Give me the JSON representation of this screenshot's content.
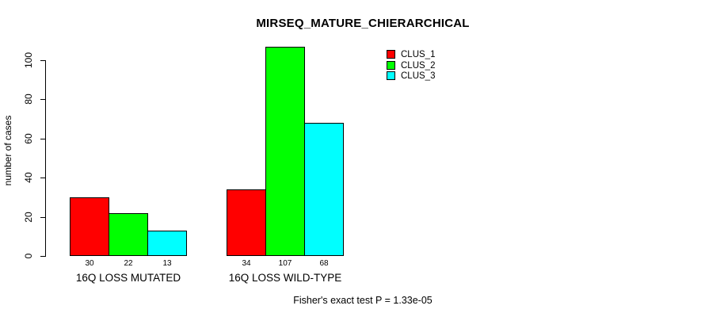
{
  "title": "MIRSEQ_MATURE_CHIERARCHICAL",
  "chart_data": {
    "type": "bar",
    "title": "MIRSEQ_MATURE_CHIERARCHICAL",
    "xlabel": "",
    "ylabel": "number of cases",
    "ylim": [
      0,
      100
    ],
    "yticks": [
      0,
      20,
      40,
      60,
      80,
      100
    ],
    "grid": false,
    "legend_position": "top-right",
    "categories": [
      "16Q LOSS MUTATED",
      "16Q LOSS WILD-TYPE"
    ],
    "series": [
      {
        "name": "CLUS_1",
        "color": "#ff0000",
        "values": [
          30,
          34
        ]
      },
      {
        "name": "CLUS_2",
        "color": "#00ff00",
        "values": [
          22,
          107
        ]
      },
      {
        "name": "CLUS_3",
        "color": "#00ffff",
        "values": [
          13,
          68
        ]
      }
    ],
    "bar_value_labels": [
      [
        "30",
        "22",
        "13"
      ],
      [
        "34",
        "107",
        "68"
      ]
    ],
    "annotation": "Fisher's exact test P = 1.33e-05"
  },
  "colors": {
    "bar_red": "#ff0000",
    "bar_green": "#00ff00",
    "bar_cyan": "#00ffff",
    "bar_border": "#000000",
    "text": "#000000",
    "background": "#ffffff"
  }
}
